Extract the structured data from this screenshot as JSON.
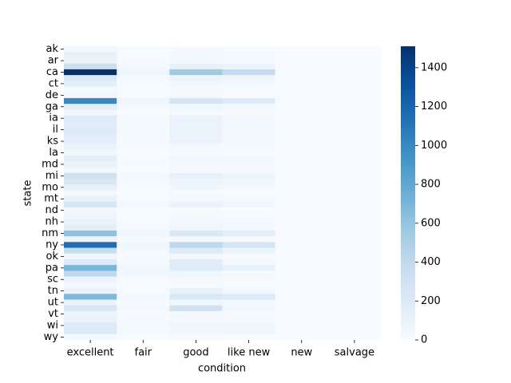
{
  "chart_data": {
    "type": "heatmap",
    "x_label": "condition",
    "y_label": "state",
    "categories": [
      "excellent",
      "fair",
      "good",
      "like new",
      "new",
      "salvage"
    ],
    "y_categories": [
      "ak",
      null,
      "ar",
      null,
      "ca",
      null,
      "ct",
      null,
      "de",
      null,
      "ga",
      null,
      "ia",
      null,
      "il",
      null,
      "ks",
      null,
      "la",
      null,
      "md",
      null,
      "mi",
      null,
      "mo",
      null,
      "mt",
      null,
      "nd",
      null,
      "nh",
      null,
      "nm",
      null,
      "ny",
      null,
      "ok",
      null,
      "pa",
      null,
      "sc",
      null,
      "tn",
      null,
      "ut",
      null,
      "vt",
      null,
      "wi",
      null,
      "wy"
    ],
    "values": [
      [
        40,
        5,
        10,
        5,
        0,
        0
      ],
      [
        120,
        10,
        40,
        20,
        0,
        0
      ],
      [
        100,
        10,
        30,
        10,
        0,
        0
      ],
      [
        320,
        30,
        120,
        90,
        0,
        0
      ],
      [
        1510,
        80,
        560,
        380,
        0,
        0
      ],
      [
        220,
        20,
        90,
        60,
        0,
        0
      ],
      [
        150,
        10,
        50,
        30,
        0,
        0
      ],
      [
        20,
        2,
        10,
        5,
        0,
        0
      ],
      [
        60,
        5,
        20,
        10,
        0,
        0
      ],
      [
        1000,
        60,
        260,
        200,
        0,
        0
      ],
      [
        150,
        20,
        60,
        40,
        0,
        0
      ],
      [
        60,
        5,
        20,
        10,
        0,
        0
      ],
      [
        200,
        20,
        100,
        30,
        0,
        0
      ],
      [
        180,
        15,
        100,
        30,
        0,
        0
      ],
      [
        200,
        20,
        100,
        30,
        0,
        0
      ],
      [
        170,
        15,
        100,
        30,
        0,
        0
      ],
      [
        150,
        15,
        100,
        30,
        0,
        0
      ],
      [
        100,
        10,
        40,
        20,
        0,
        0
      ],
      [
        50,
        5,
        20,
        10,
        0,
        0
      ],
      [
        150,
        10,
        50,
        30,
        0,
        0
      ],
      [
        100,
        10,
        50,
        30,
        0,
        0
      ],
      [
        60,
        5,
        20,
        10,
        0,
        0
      ],
      [
        300,
        30,
        120,
        80,
        0,
        0
      ],
      [
        250,
        20,
        80,
        60,
        0,
        0
      ],
      [
        120,
        15,
        60,
        30,
        0,
        0
      ],
      [
        30,
        5,
        10,
        5,
        0,
        0
      ],
      [
        120,
        10,
        40,
        20,
        0,
        0
      ],
      [
        250,
        30,
        100,
        60,
        0,
        0
      ],
      [
        40,
        5,
        10,
        5,
        0,
        0
      ],
      [
        60,
        5,
        20,
        10,
        0,
        0
      ],
      [
        100,
        10,
        30,
        20,
        0,
        0
      ],
      [
        150,
        20,
        60,
        40,
        0,
        0
      ],
      [
        620,
        60,
        220,
        150,
        0,
        0
      ],
      [
        90,
        10,
        40,
        20,
        0,
        0
      ],
      [
        1150,
        60,
        420,
        270,
        0,
        0
      ],
      [
        350,
        30,
        200,
        90,
        0,
        0
      ],
      [
        60,
        10,
        30,
        10,
        0,
        0
      ],
      [
        200,
        20,
        170,
        30,
        0,
        0
      ],
      [
        700,
        60,
        180,
        110,
        0,
        0
      ],
      [
        400,
        50,
        60,
        20,
        0,
        0
      ],
      [
        90,
        10,
        30,
        20,
        0,
        0
      ],
      [
        30,
        5,
        10,
        5,
        0,
        0
      ],
      [
        100,
        10,
        120,
        50,
        0,
        0
      ],
      [
        680,
        40,
        220,
        200,
        0,
        0
      ],
      [
        100,
        10,
        60,
        30,
        0,
        0
      ],
      [
        250,
        30,
        300,
        60,
        0,
        0
      ],
      [
        80,
        10,
        40,
        10,
        0,
        0
      ],
      [
        100,
        10,
        30,
        20,
        0,
        0
      ],
      [
        200,
        20,
        60,
        60,
        0,
        0
      ],
      [
        200,
        20,
        60,
        60,
        0,
        0
      ],
      [
        20,
        2,
        10,
        5,
        0,
        0
      ]
    ],
    "colormap": "Blues",
    "clim": [
      0,
      1510
    ],
    "cticks": [
      0,
      200,
      400,
      600,
      800,
      1000,
      1200,
      1400
    ]
  }
}
